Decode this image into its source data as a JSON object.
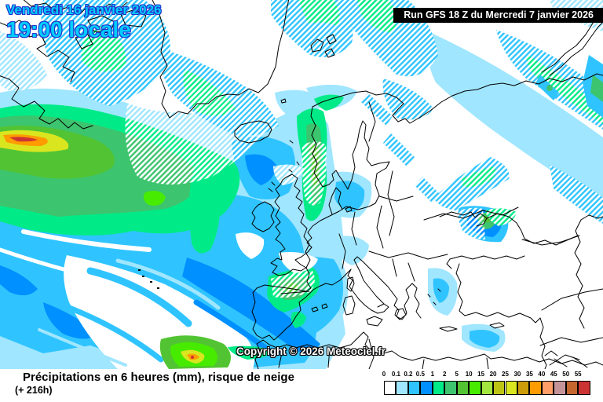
{
  "header": {
    "date_line1": "Vendredi 16 janvier 2026",
    "date_line2": "19:00 locale",
    "run_label": "Run GFS 18 Z du Mercredi 7 janvier 2026"
  },
  "map": {
    "copyright": "Copyright © 2026 Meteociel.fr",
    "colors": {
      "sea_and_land": "#ffffff",
      "coastline": "#000000",
      "date_text": "#00ccff",
      "date_outline": "#2233cc",
      "run_box_bg": "#000000",
      "run_box_text": "#ffffff",
      "snow_hatch_stripe": "#ffffff"
    }
  },
  "caption": {
    "title": "Précipitations en 6 heures (mm), risque de neige",
    "subtitle": "(+ 216h)"
  },
  "legend": {
    "values": [
      "0",
      "0.1",
      "0.2",
      "0.5",
      "1",
      "2",
      "5",
      "10",
      "15",
      "20",
      "25",
      "30",
      "35",
      "40",
      "45",
      "50",
      "55"
    ],
    "colors": [
      "#ffffff",
      "#a0e6ff",
      "#2fc4ff",
      "#0090ff",
      "#00eb87",
      "#3dc46e",
      "#52c433",
      "#47eb00",
      "#a3e63d",
      "#bdc414",
      "#d9e61f",
      "#cc9c0a",
      "#ff9c00",
      "#ff9e66",
      "#c49499",
      "#c4662e",
      "#cc3333"
    ]
  }
}
